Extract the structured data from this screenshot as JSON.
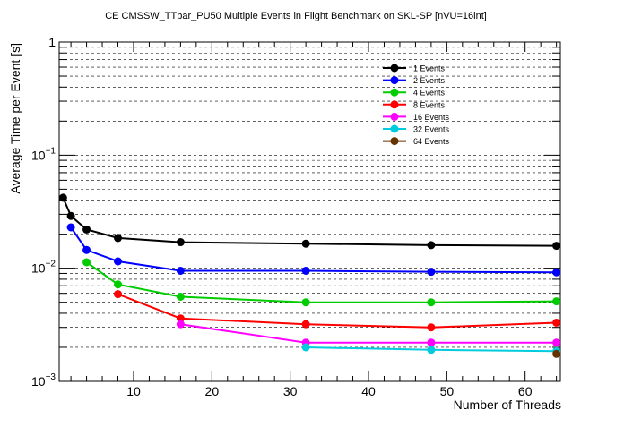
{
  "chart_data": {
    "type": "line",
    "title": "CE CMSSW_TTbar_PU50 Multiple Events in Flight Benchmark on SKL-SP [nVU=16int]",
    "xlabel": "Number of Threads",
    "ylabel": "Average Time per Event [s]",
    "y_scale": "log",
    "xlim": [
      0.5,
      64.5
    ],
    "ylim": [
      0.001,
      1
    ],
    "grid": "y-major-and-minor",
    "legend_position": "top-right",
    "x_ticks": [
      {
        "value": 10,
        "label": "10"
      },
      {
        "value": 20,
        "label": "20"
      },
      {
        "value": 30,
        "label": "30"
      },
      {
        "value": 40,
        "label": "40"
      },
      {
        "value": 50,
        "label": "50"
      },
      {
        "value": 60,
        "label": "60"
      }
    ],
    "y_tick_labels": [
      {
        "value": 1,
        "base": "1",
        "exp": ""
      },
      {
        "value": 0.1,
        "base": "10",
        "exp": "−1"
      },
      {
        "value": 0.01,
        "base": "10",
        "exp": "−2"
      },
      {
        "value": 0.001,
        "base": "10",
        "exp": "−3"
      }
    ],
    "series": [
      {
        "name": "1 Events",
        "color": "#000000",
        "points": [
          [
            1,
            0.042
          ],
          [
            2,
            0.029
          ],
          [
            4,
            0.022
          ],
          [
            8,
            0.0185
          ],
          [
            16,
            0.017
          ],
          [
            32,
            0.0165
          ],
          [
            48,
            0.016
          ],
          [
            64,
            0.0158
          ]
        ]
      },
      {
        "name": "2 Events",
        "color": "#0000ff",
        "points": [
          [
            2,
            0.023
          ],
          [
            4,
            0.0145
          ],
          [
            8,
            0.0115
          ],
          [
            16,
            0.0095
          ],
          [
            32,
            0.0095
          ],
          [
            48,
            0.0093
          ],
          [
            64,
            0.0092
          ]
        ]
      },
      {
        "name": "4 Events",
        "color": "#00cc00",
        "points": [
          [
            4,
            0.0113
          ],
          [
            8,
            0.0072
          ],
          [
            16,
            0.0056
          ],
          [
            32,
            0.005
          ],
          [
            48,
            0.005
          ],
          [
            64,
            0.0051
          ]
        ]
      },
      {
        "name": "8 Events",
        "color": "#ff0000",
        "points": [
          [
            8,
            0.0059
          ],
          [
            16,
            0.0036
          ],
          [
            32,
            0.0032
          ],
          [
            48,
            0.003
          ],
          [
            64,
            0.0033
          ]
        ]
      },
      {
        "name": "16 Events",
        "color": "#ff00ff",
        "points": [
          [
            16,
            0.0032
          ],
          [
            32,
            0.0022
          ],
          [
            48,
            0.0022
          ],
          [
            64,
            0.0022
          ]
        ]
      },
      {
        "name": "32 Events",
        "color": "#00ccdd",
        "points": [
          [
            32,
            0.002
          ],
          [
            48,
            0.0019
          ],
          [
            64,
            0.00185
          ]
        ]
      },
      {
        "name": "64 Events",
        "color": "#663300",
        "points": [
          [
            64,
            0.00175
          ]
        ]
      }
    ]
  }
}
